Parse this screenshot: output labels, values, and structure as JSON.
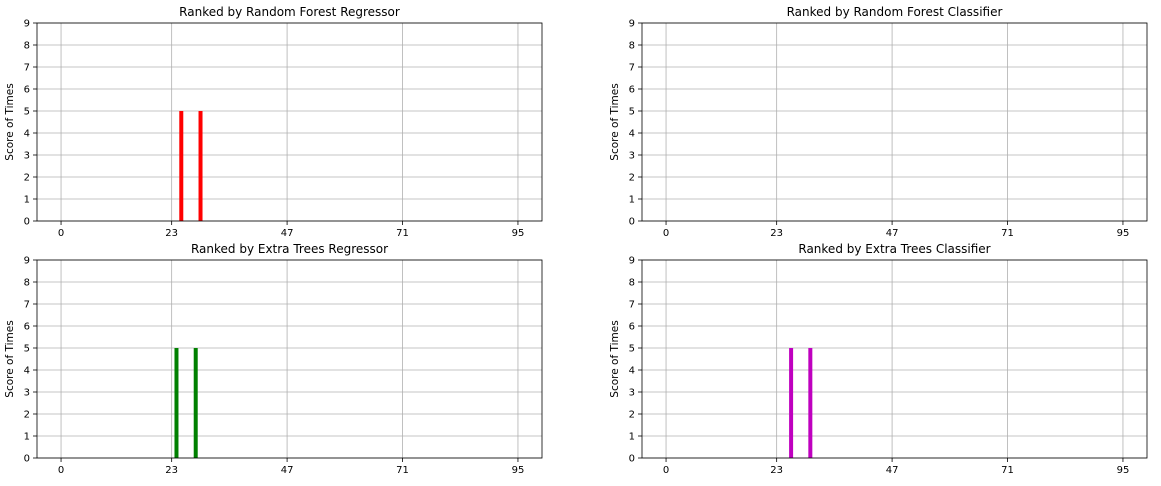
{
  "chart_data": [
    {
      "type": "bar",
      "title": "Ranked by Random Forest Regressor",
      "ylabel": "Score of Times",
      "xticks": [
        0,
        23,
        47,
        71,
        95
      ],
      "yticks": [
        0,
        1,
        2,
        3,
        4,
        5,
        6,
        7,
        8,
        9
      ],
      "xlim": [
        -5,
        100
      ],
      "ylim": [
        0,
        9
      ],
      "grid": true,
      "color": "#ff0000",
      "bars": [
        {
          "x": 25,
          "value": 5
        },
        {
          "x": 29,
          "value": 5
        }
      ]
    },
    {
      "type": "bar",
      "title": "Ranked by Random Forest Classifier",
      "ylabel": "Score of Times",
      "xticks": [
        0,
        23,
        47,
        71,
        95
      ],
      "yticks": [
        0,
        1,
        2,
        3,
        4,
        5,
        6,
        7,
        8,
        9
      ],
      "xlim": [
        -5,
        100
      ],
      "ylim": [
        0,
        9
      ],
      "grid": true,
      "color": "#0000ff",
      "bars": []
    },
    {
      "type": "bar",
      "title": "Ranked by Extra Trees Regressor",
      "ylabel": "Score of Times",
      "xticks": [
        0,
        23,
        47,
        71,
        95
      ],
      "yticks": [
        0,
        1,
        2,
        3,
        4,
        5,
        6,
        7,
        8,
        9
      ],
      "xlim": [
        -5,
        100
      ],
      "ylim": [
        0,
        9
      ],
      "grid": true,
      "color": "#008000",
      "bars": [
        {
          "x": 24,
          "value": 5
        },
        {
          "x": 28,
          "value": 5
        }
      ]
    },
    {
      "type": "bar",
      "title": "Ranked by Extra Trees Classifier",
      "ylabel": "Score of Times",
      "xticks": [
        0,
        23,
        47,
        71,
        95
      ],
      "yticks": [
        0,
        1,
        2,
        3,
        4,
        5,
        6,
        7,
        8,
        9
      ],
      "xlim": [
        -5,
        100
      ],
      "ylim": [
        0,
        9
      ],
      "grid": true,
      "color": "#bf00bf",
      "bars": [
        {
          "x": 26,
          "value": 5
        },
        {
          "x": 30,
          "value": 5
        }
      ]
    }
  ]
}
